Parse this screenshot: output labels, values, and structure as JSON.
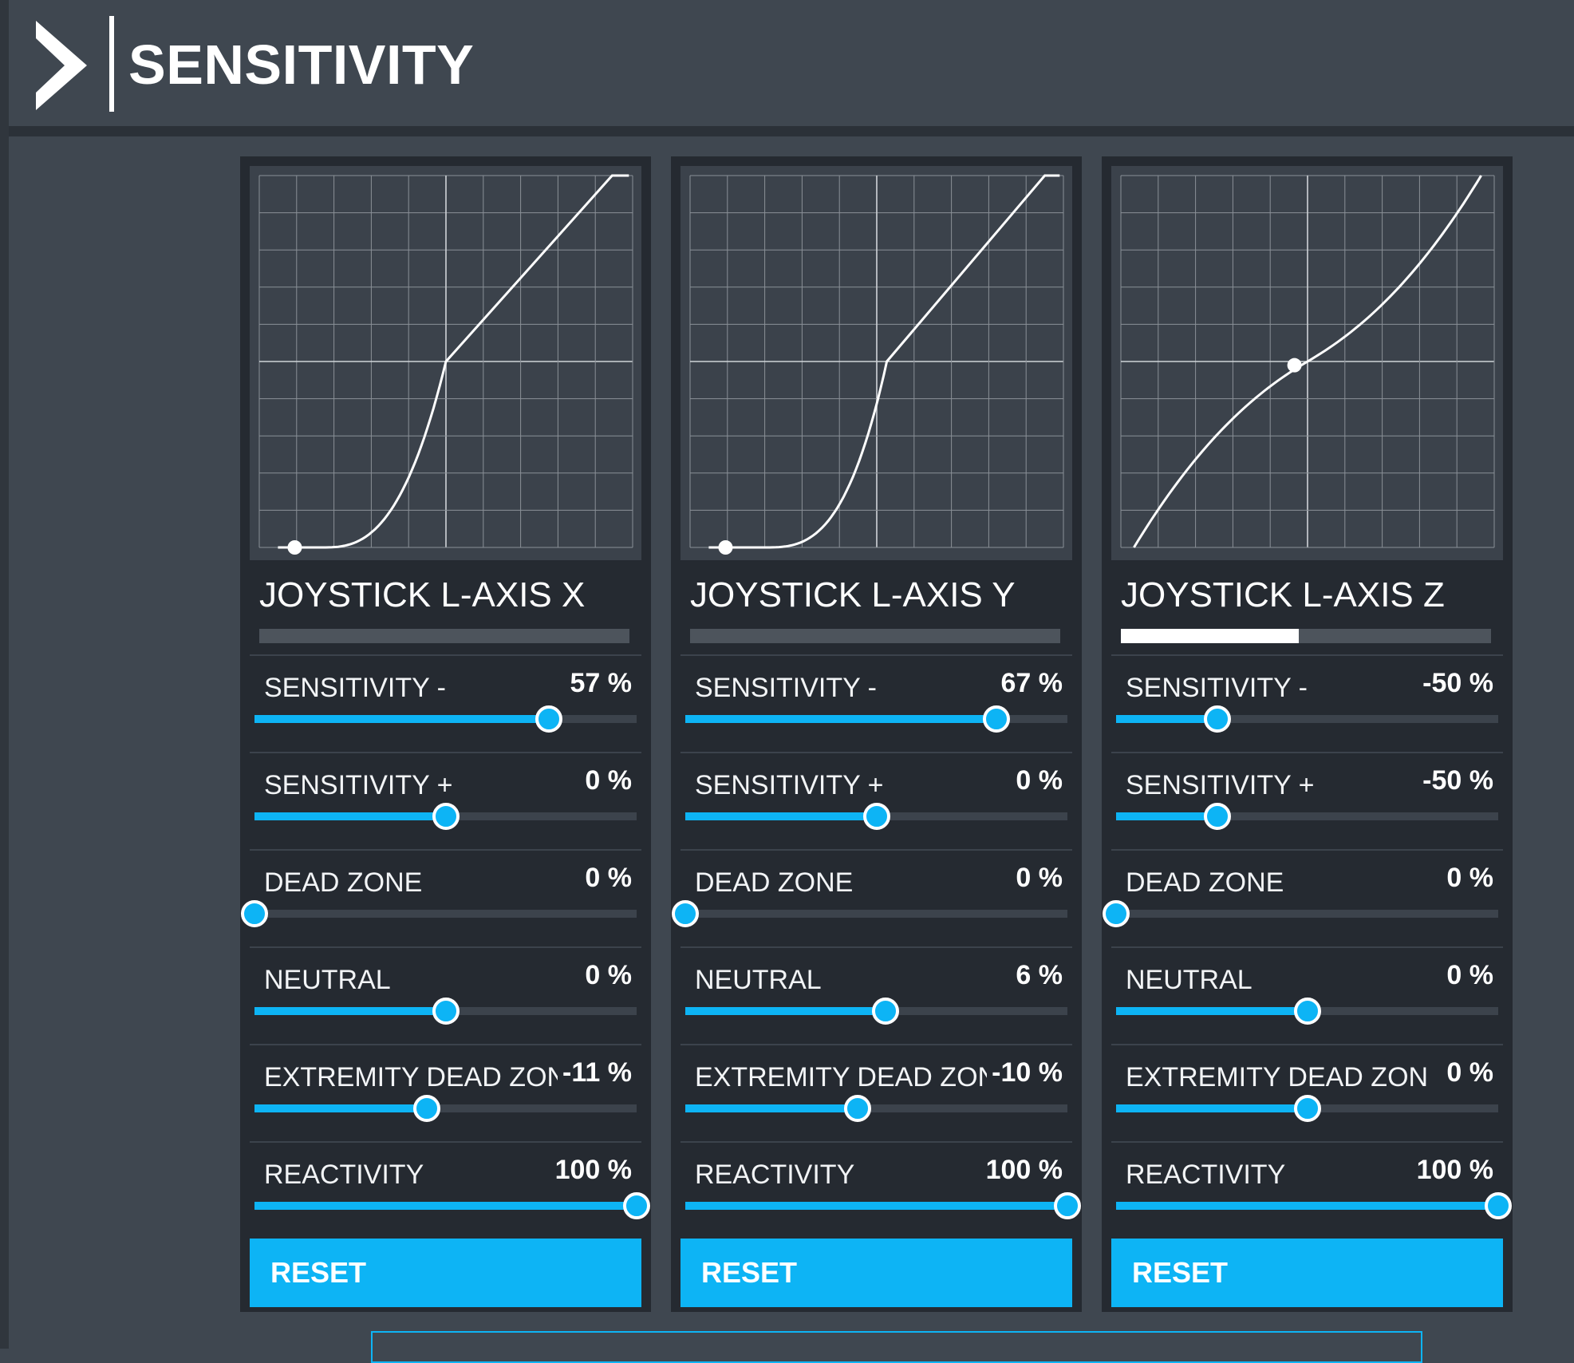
{
  "header": {
    "title": "SENSITIVITY"
  },
  "panels": [
    {
      "axis_name": "JOYSTICK L-AXIS X",
      "axis_input": 0,
      "curve": {
        "dead_zone": 0.0,
        "neutral": 0.0,
        "sens_neg": 0.57,
        "sens_pos": 0.0,
        "extremity": 0.11,
        "symmetric": true
      },
      "reset_label": "RESET",
      "settings": [
        {
          "label": "SENSITIVITY -",
          "value": "57 %",
          "pos": 0.77
        },
        {
          "label": "SENSITIVITY +",
          "value": "0 %",
          "pos": 0.5
        },
        {
          "label": "DEAD ZONE",
          "value": "0 %",
          "pos": 0.0
        },
        {
          "label": "NEUTRAL",
          "value": "0 %",
          "pos": 0.5
        },
        {
          "label": "EXTREMITY DEAD ZONE",
          "value": "-11 %",
          "pos": 0.45
        },
        {
          "label": "REACTIVITY",
          "value": "100 %",
          "pos": 1.0
        }
      ]
    },
    {
      "axis_name": "JOYSTICK L-AXIS Y",
      "axis_input": 0,
      "curve": {
        "dead_zone": 0.0,
        "neutral": 0.06,
        "sens_neg": 0.67,
        "sens_pos": 0.0,
        "extremity": 0.1,
        "symmetric": true
      },
      "reset_label": "RESET",
      "settings": [
        {
          "label": "SENSITIVITY -",
          "value": "67 %",
          "pos": 0.815
        },
        {
          "label": "SENSITIVITY +",
          "value": "0 %",
          "pos": 0.5
        },
        {
          "label": "DEAD ZONE",
          "value": "0 %",
          "pos": 0.0
        },
        {
          "label": "NEUTRAL",
          "value": "6 %",
          "pos": 0.525
        },
        {
          "label": "EXTREMITY DEAD ZONE",
          "value": "-10 %",
          "pos": 0.45
        },
        {
          "label": "REACTIVITY",
          "value": "100 %",
          "pos": 1.0
        }
      ]
    },
    {
      "axis_name": "JOYSTICK L-AXIS Z",
      "axis_input": 0.48,
      "curve": {
        "dead_zone": 0.0,
        "neutral": 0.0,
        "sens_neg": -0.5,
        "sens_pos": -0.5,
        "extremity": 0.0,
        "symmetric": false
      },
      "reset_label": "RESET",
      "settings": [
        {
          "label": "SENSITIVITY -",
          "value": "-50 %",
          "pos": 0.265
        },
        {
          "label": "SENSITIVITY +",
          "value": "-50 %",
          "pos": 0.265
        },
        {
          "label": "DEAD ZONE",
          "value": "0 %",
          "pos": 0.0
        },
        {
          "label": "NEUTRAL",
          "value": "0 %",
          "pos": 0.5
        },
        {
          "label": "EXTREMITY DEAD ZONE",
          "value": "0 %",
          "pos": 0.5
        },
        {
          "label": "REACTIVITY",
          "value": "100 %",
          "pos": 1.0
        }
      ]
    }
  ],
  "colors": {
    "accent": "#0db4f5",
    "panel": "#252a31",
    "background": "#3f4750",
    "graph": "#3b424b"
  }
}
